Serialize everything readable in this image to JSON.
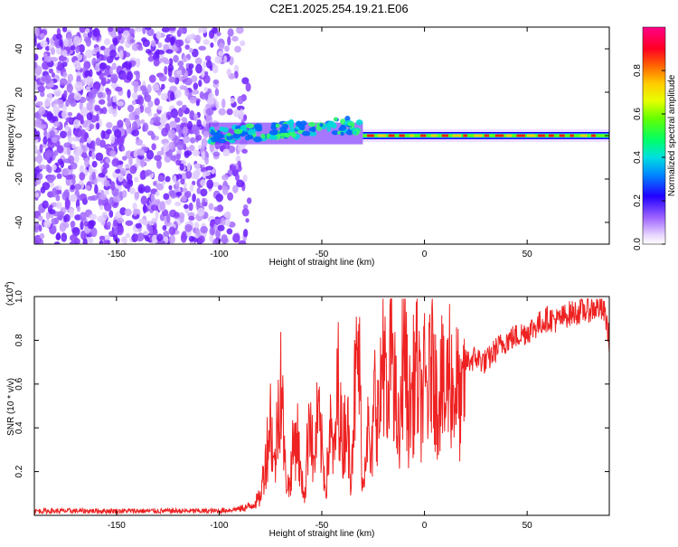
{
  "page": {
    "title": "C2E1.2025.254.19.21.E06"
  },
  "colors": {
    "snr_line": "#ee2222",
    "frame": "#000000"
  },
  "chart_data": [
    {
      "type": "heatmap",
      "name": "spectrogram",
      "xlabel": "Height of straight line (km)",
      "ylabel": "Frequency (Hz)",
      "xlim": [
        -190,
        90
      ],
      "ylim": [
        -50,
        50
      ],
      "xticks": [
        -150,
        -100,
        -50,
        0,
        50
      ],
      "yticks": [
        -40,
        -20,
        0,
        20,
        40
      ],
      "xtick_labels": [
        "-150",
        "-100",
        "-50",
        "0",
        "50"
      ],
      "ytick_labels": [
        "-40",
        "-20",
        "0",
        "20",
        "40"
      ],
      "colorbar": {
        "label": "Normalized spectral amplitude",
        "range": [
          0,
          1
        ],
        "ticks": [
          0.0,
          0.2,
          0.4,
          0.6,
          0.8
        ],
        "tick_labels": [
          "0.0",
          "0.2",
          "0.4",
          "0.6",
          "0.8"
        ]
      },
      "features": [
        {
          "region": "noise",
          "x_range": [
            -190,
            -90
          ],
          "y_range": [
            -50,
            50
          ],
          "amplitude": 0.1
        },
        {
          "region": "emerging-carrier",
          "x_range": [
            -105,
            -30
          ],
          "y_center": [
            0,
            8
          ],
          "amplitude": 0.35
        },
        {
          "region": "carrier",
          "x_range": [
            -30,
            90
          ],
          "y_center": 0,
          "amplitude": 0.9
        }
      ]
    },
    {
      "type": "line",
      "name": "snr",
      "xlabel": "Height of straight line (km)",
      "ylabel": "SNR (10 * v/v)",
      "scale_label": "(x10",
      "scale_exp": "4",
      "xlim": [
        -190,
        90
      ],
      "ylim": [
        0,
        1.0
      ],
      "xticks": [
        -150,
        -100,
        -50,
        0,
        50
      ],
      "yticks": [
        0.2,
        0.4,
        0.6,
        0.8,
        1.0
      ],
      "xtick_labels": [
        "-150",
        "-100",
        "-50",
        "0",
        "50"
      ],
      "ytick_labels": [
        "0.2",
        "0.4",
        "0.6",
        "0.8",
        "1.0"
      ],
      "series": [
        {
          "name": "SNR",
          "x": [
            -190,
            -170,
            -150,
            -130,
            -110,
            -100,
            -95,
            -90,
            -85,
            -80,
            -77,
            -75,
            -73,
            -70,
            -68,
            -66,
            -64,
            -62,
            -60,
            -58,
            -56,
            -54,
            -52,
            -50,
            -48,
            -46,
            -44,
            -42,
            -40,
            -38,
            -36,
            -34,
            -32,
            -30,
            -28,
            -26,
            -24,
            -22,
            -20,
            -18,
            -16,
            -14,
            -12,
            -10,
            -8,
            -6,
            -4,
            -2,
            0,
            2,
            4,
            6,
            8,
            10,
            12,
            14,
            16,
            18,
            20,
            25,
            30,
            35,
            40,
            45,
            50,
            55,
            60,
            65,
            70,
            75,
            80,
            85,
            88,
            90
          ],
          "values": [
            0.02,
            0.02,
            0.02,
            0.02,
            0.02,
            0.02,
            0.025,
            0.03,
            0.04,
            0.08,
            0.28,
            0.45,
            0.2,
            0.68,
            0.22,
            0.12,
            0.3,
            0.38,
            0.15,
            0.1,
            0.55,
            0.2,
            0.45,
            0.3,
            0.12,
            0.4,
            0.25,
            0.62,
            0.3,
            0.48,
            0.2,
            0.55,
            0.75,
            0.1,
            0.45,
            0.2,
            0.6,
            0.4,
            0.85,
            0.35,
            0.92,
            0.5,
            0.3,
            0.95,
            0.45,
            0.55,
            0.7,
            0.5,
            0.6,
            0.55,
            0.85,
            0.5,
            0.65,
            0.48,
            0.7,
            0.55,
            0.6,
            0.45,
            0.7,
            0.72,
            0.7,
            0.76,
            0.8,
            0.82,
            0.84,
            0.87,
            0.9,
            0.89,
            0.92,
            0.93,
            0.94,
            0.95,
            0.92,
            0.8
          ]
        }
      ]
    }
  ]
}
